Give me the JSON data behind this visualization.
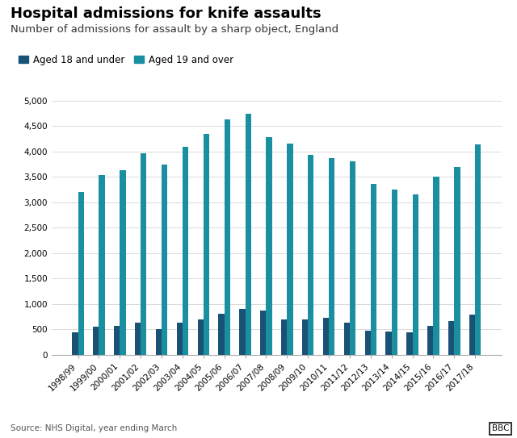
{
  "title": "Hospital admissions for knife assaults",
  "subtitle": "Number of admissions for assault by a sharp object, England",
  "source": "Source: NHS Digital, year ending March",
  "categories": [
    "1998/99",
    "1999/00",
    "2000/01",
    "2001/02",
    "2002/03",
    "2003/04",
    "2004/05",
    "2005/06",
    "2006/07",
    "2007/08",
    "2008/09",
    "2009/10",
    "2010/11",
    "2011/12",
    "2012/13",
    "2013/14",
    "2014/15",
    "2015/16",
    "2016/17",
    "2017/18"
  ],
  "under18": [
    440,
    550,
    570,
    640,
    510,
    640,
    690,
    810,
    900,
    870,
    700,
    700,
    720,
    630,
    480,
    460,
    440,
    570,
    660,
    790
  ],
  "over19": [
    3200,
    3540,
    3640,
    3960,
    3740,
    4100,
    4350,
    4640,
    4750,
    4290,
    4150,
    3930,
    3870,
    3800,
    3360,
    3250,
    3160,
    3500,
    3690,
    4140
  ],
  "color_under18": "#1a5276",
  "color_over19": "#1a8fa0",
  "ylim": [
    0,
    5000
  ],
  "yticks": [
    0,
    500,
    1000,
    1500,
    2000,
    2500,
    3000,
    3500,
    4000,
    4500,
    5000
  ],
  "legend_under18": "Aged 18 and under",
  "legend_over19": "Aged 19 and over",
  "background_color": "#ffffff",
  "bar_width": 0.28,
  "title_fontsize": 13,
  "subtitle_fontsize": 9.5,
  "axis_fontsize": 8.5,
  "tick_fontsize": 7.5
}
